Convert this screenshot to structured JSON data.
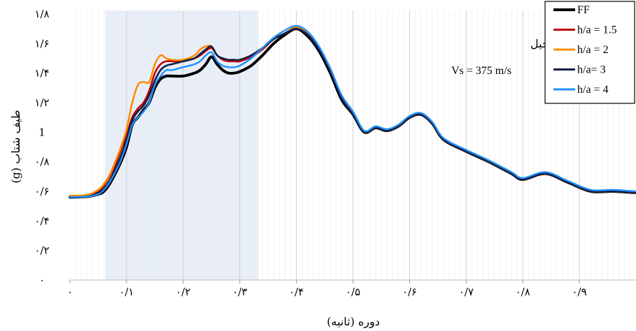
{
  "chart_data": {
    "type": "line",
    "xlabel": "دوره (ثانیه)",
    "ylabel": "طیف شتاب (g)",
    "xlim": [
      0,
      1
    ],
    "ylim": [
      0,
      1.8
    ],
    "x_ticks": [
      {
        "v": 0,
        "label": "۰"
      },
      {
        "v": 0.1,
        "label": "۰/۱"
      },
      {
        "v": 0.2,
        "label": "۰/۲"
      },
      {
        "v": 0.3,
        "label": "۰/۳"
      },
      {
        "v": 0.4,
        "label": "۰/۴"
      },
      {
        "v": 0.5,
        "label": "۰/۵"
      },
      {
        "v": 0.6,
        "label": "۰/۶"
      },
      {
        "v": 0.7,
        "label": "۰/۷"
      },
      {
        "v": 0.8,
        "label": "۰/۸"
      },
      {
        "v": 0.9,
        "label": "۰/۹"
      }
    ],
    "y_ticks": [
      {
        "v": 0,
        "label": "۰"
      },
      {
        "v": 0.2,
        "label": "۰/۲"
      },
      {
        "v": 0.4,
        "label": "۰/۴"
      },
      {
        "v": 0.6,
        "label": "۰/۶"
      },
      {
        "v": 0.8,
        "label": "۰/۸"
      },
      {
        "v": 1.0,
        "label": "1"
      },
      {
        "v": 1.2,
        "label": "۱/۲"
      },
      {
        "v": 1.4,
        "label": "۱/۴"
      },
      {
        "v": 1.6,
        "label": "۱/۶"
      },
      {
        "v": 1.8,
        "label": "۱/۸"
      }
    ],
    "highlight_band": {
      "x_start": 0.062,
      "x_end": 0.333,
      "color": "#e8eef8"
    },
    "grid": {
      "vertical_minor": true,
      "horizontal": false
    },
    "legend_position": "top-right",
    "annotations": [
      "زلزله منجیل",
      "Vs = 375 m/s"
    ],
    "series": [
      {
        "name": "FF",
        "color": "#000000",
        "x": [
          0,
          0.03,
          0.05,
          0.06,
          0.07,
          0.08,
          0.09,
          0.1,
          0.11,
          0.12,
          0.13,
          0.14,
          0.15,
          0.16,
          0.17,
          0.18,
          0.2,
          0.22,
          0.23,
          0.24,
          0.25,
          0.26,
          0.27,
          0.28,
          0.29,
          0.3,
          0.32,
          0.34,
          0.36,
          0.38,
          0.4,
          0.42,
          0.44,
          0.46,
          0.48,
          0.5,
          0.52,
          0.54,
          0.56,
          0.58,
          0.6,
          0.62,
          0.64,
          0.66,
          0.7,
          0.74,
          0.78,
          0.8,
          0.84,
          0.88,
          0.92,
          0.96,
          1.0
        ],
        "y": [
          0.56,
          0.565,
          0.58,
          0.6,
          0.65,
          0.72,
          0.8,
          0.9,
          1.05,
          1.1,
          1.15,
          1.2,
          1.3,
          1.36,
          1.38,
          1.38,
          1.38,
          1.4,
          1.42,
          1.46,
          1.51,
          1.46,
          1.42,
          1.4,
          1.4,
          1.41,
          1.45,
          1.52,
          1.6,
          1.66,
          1.7,
          1.65,
          1.55,
          1.4,
          1.22,
          1.12,
          1.0,
          1.03,
          1.01,
          1.04,
          1.1,
          1.12,
          1.06,
          0.95,
          0.87,
          0.8,
          0.72,
          0.68,
          0.72,
          0.66,
          0.6,
          0.6,
          0.59
        ]
      },
      {
        "name": "h/a = 1.5",
        "color": "#c00000",
        "x": [
          0,
          0.03,
          0.05,
          0.06,
          0.07,
          0.08,
          0.09,
          0.1,
          0.11,
          0.12,
          0.13,
          0.14,
          0.15,
          0.16,
          0.17,
          0.18,
          0.2,
          0.22,
          0.23,
          0.24,
          0.25,
          0.26,
          0.27,
          0.28,
          0.29,
          0.3,
          0.32,
          0.34,
          0.36,
          0.38,
          0.4,
          0.42,
          0.44,
          0.46,
          0.48,
          0.5,
          0.52,
          0.54,
          0.56,
          0.58,
          0.6,
          0.62,
          0.64,
          0.66,
          0.7,
          0.74,
          0.78,
          0.8,
          0.84,
          0.88,
          0.92,
          0.96,
          1.0
        ],
        "y": [
          0.565,
          0.57,
          0.6,
          0.64,
          0.7,
          0.78,
          0.88,
          0.98,
          1.1,
          1.16,
          1.2,
          1.28,
          1.4,
          1.46,
          1.48,
          1.48,
          1.48,
          1.5,
          1.52,
          1.55,
          1.57,
          1.52,
          1.49,
          1.48,
          1.48,
          1.48,
          1.51,
          1.56,
          1.63,
          1.67,
          1.71,
          1.67,
          1.57,
          1.43,
          1.24,
          1.13,
          1.0,
          1.03,
          1.01,
          1.04,
          1.1,
          1.12,
          1.06,
          0.95,
          0.87,
          0.8,
          0.72,
          0.68,
          0.72,
          0.66,
          0.6,
          0.6,
          0.59
        ]
      },
      {
        "name": "h/a = 2",
        "color": "#ff8c00",
        "x": [
          0,
          0.03,
          0.05,
          0.06,
          0.07,
          0.08,
          0.09,
          0.1,
          0.11,
          0.12,
          0.13,
          0.14,
          0.15,
          0.16,
          0.17,
          0.18,
          0.2,
          0.22,
          0.23,
          0.24,
          0.25,
          0.26,
          0.27,
          0.28,
          0.29,
          0.3,
          0.32,
          0.34,
          0.36,
          0.38,
          0.4,
          0.42,
          0.44,
          0.46,
          0.48,
          0.5,
          0.52,
          0.54,
          0.56,
          0.58,
          0.6,
          0.62,
          0.64,
          0.66,
          0.7,
          0.74,
          0.78,
          0.8,
          0.84,
          0.88,
          0.92,
          0.96,
          1.0
        ],
        "y": [
          0.57,
          0.575,
          0.61,
          0.65,
          0.71,
          0.8,
          0.9,
          1.02,
          1.2,
          1.32,
          1.34,
          1.34,
          1.46,
          1.52,
          1.5,
          1.49,
          1.49,
          1.52,
          1.56,
          1.58,
          1.58,
          1.52,
          1.5,
          1.49,
          1.49,
          1.49,
          1.52,
          1.57,
          1.63,
          1.67,
          1.71,
          1.67,
          1.57,
          1.43,
          1.24,
          1.13,
          1.0,
          1.03,
          1.01,
          1.04,
          1.1,
          1.12,
          1.06,
          0.95,
          0.87,
          0.8,
          0.72,
          0.68,
          0.72,
          0.66,
          0.6,
          0.6,
          0.59
        ]
      },
      {
        "name": "h/a= 3",
        "color": "#0f1e46",
        "x": [
          0,
          0.03,
          0.05,
          0.06,
          0.07,
          0.08,
          0.09,
          0.1,
          0.11,
          0.12,
          0.13,
          0.14,
          0.15,
          0.16,
          0.17,
          0.18,
          0.2,
          0.22,
          0.23,
          0.24,
          0.25,
          0.26,
          0.27,
          0.28,
          0.29,
          0.3,
          0.32,
          0.34,
          0.36,
          0.38,
          0.4,
          0.42,
          0.44,
          0.46,
          0.48,
          0.5,
          0.52,
          0.54,
          0.56,
          0.58,
          0.6,
          0.62,
          0.64,
          0.66,
          0.7,
          0.74,
          0.78,
          0.8,
          0.84,
          0.88,
          0.92,
          0.96,
          1.0
        ],
        "y": [
          0.56,
          0.565,
          0.59,
          0.62,
          0.67,
          0.75,
          0.84,
          0.95,
          1.08,
          1.14,
          1.18,
          1.25,
          1.35,
          1.42,
          1.45,
          1.46,
          1.48,
          1.5,
          1.53,
          1.56,
          1.58,
          1.52,
          1.5,
          1.49,
          1.49,
          1.49,
          1.52,
          1.57,
          1.63,
          1.67,
          1.7,
          1.66,
          1.56,
          1.42,
          1.23,
          1.12,
          1.0,
          1.03,
          1.01,
          1.04,
          1.1,
          1.12,
          1.06,
          0.95,
          0.87,
          0.8,
          0.72,
          0.68,
          0.72,
          0.66,
          0.6,
          0.6,
          0.59
        ]
      },
      {
        "name": "h/a = 4",
        "color": "#1e90ff",
        "x": [
          0,
          0.03,
          0.05,
          0.06,
          0.07,
          0.08,
          0.09,
          0.1,
          0.11,
          0.12,
          0.13,
          0.14,
          0.15,
          0.16,
          0.17,
          0.18,
          0.2,
          0.22,
          0.23,
          0.24,
          0.25,
          0.26,
          0.27,
          0.28,
          0.29,
          0.3,
          0.32,
          0.34,
          0.36,
          0.38,
          0.4,
          0.42,
          0.44,
          0.46,
          0.48,
          0.5,
          0.52,
          0.54,
          0.56,
          0.58,
          0.6,
          0.62,
          0.64,
          0.66,
          0.7,
          0.74,
          0.78,
          0.8,
          0.84,
          0.88,
          0.92,
          0.96,
          1.0
        ],
        "y": [
          0.56,
          0.565,
          0.58,
          0.61,
          0.66,
          0.73,
          0.81,
          0.92,
          1.05,
          1.1,
          1.14,
          1.2,
          1.32,
          1.38,
          1.42,
          1.42,
          1.44,
          1.46,
          1.48,
          1.52,
          1.54,
          1.48,
          1.45,
          1.44,
          1.44,
          1.45,
          1.5,
          1.57,
          1.64,
          1.69,
          1.72,
          1.68,
          1.58,
          1.43,
          1.25,
          1.14,
          1.01,
          1.04,
          1.02,
          1.05,
          1.11,
          1.13,
          1.07,
          0.96,
          0.88,
          0.81,
          0.73,
          0.69,
          0.73,
          0.67,
          0.61,
          0.61,
          0.6
        ]
      }
    ]
  }
}
